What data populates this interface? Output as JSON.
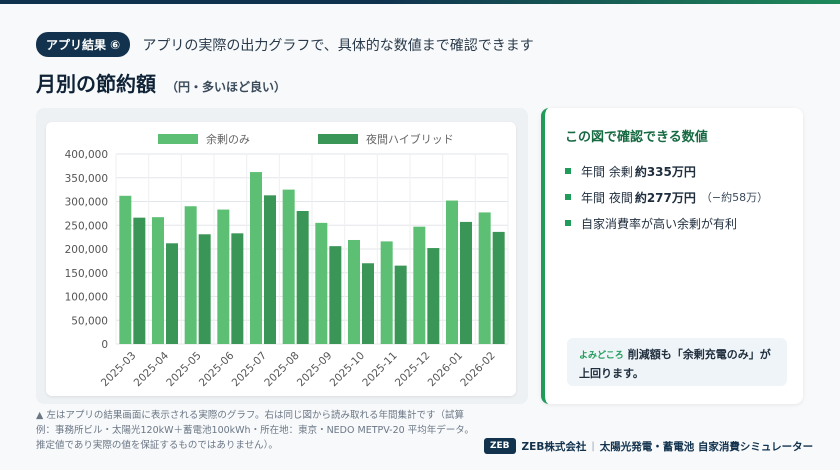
{
  "header": {
    "badge": "アプリ結果 ⑥",
    "subtitle": "アプリの実際の出力グラフで、具体的な数値まで確認できます",
    "title": "月別の節約額",
    "title_note": "（円・多いほど良い）"
  },
  "colors": {
    "series_1": "#5cbf74",
    "series_2": "#3a9656",
    "accent": "#1f9c59",
    "navy": "#12324d"
  },
  "chart_data": {
    "type": "bar",
    "categories": [
      "2025-03",
      "2025-04",
      "2025-05",
      "2025-06",
      "2025-07",
      "2025-08",
      "2025-09",
      "2025-10",
      "2025-11",
      "2025-12",
      "2026-01",
      "2026-02"
    ],
    "series": [
      {
        "name": "余剰のみ",
        "values": [
          312000,
          267000,
          290000,
          283000,
          362000,
          325000,
          255000,
          219000,
          216000,
          247000,
          302000,
          277000
        ]
      },
      {
        "name": "夜間ハイブリッド",
        "values": [
          266000,
          212000,
          231000,
          233000,
          313000,
          280000,
          206000,
          170000,
          165000,
          202000,
          257000,
          236000
        ]
      }
    ],
    "y_ticks": [
      "0",
      "50,000",
      "100,000",
      "150,000",
      "200,000",
      "250,000",
      "300,000",
      "350,000",
      "400,000"
    ],
    "ylim": [
      0,
      400000
    ],
    "grid": true,
    "legend": "top"
  },
  "info": {
    "title": "この図で確認できる数値",
    "items": [
      {
        "pre": "年間 余剰",
        "bold": "約335万円",
        "extra": ""
      },
      {
        "pre": "年間 夜間",
        "bold": "約277万円",
        "extra": "（−約58万）"
      },
      {
        "pre": "自家消費率が高い余剰が有利",
        "bold": "",
        "extra": ""
      }
    ],
    "note_tag": "よみどころ",
    "note_text": "削減額も「余剰充電のみ」が上回ります。"
  },
  "footnote": "▲ 左はアプリの結果画面に表示される実際のグラフ。右は同じ図から読み取れる年間集計です（試算例：事務所ビル・太陽光120kW＋蓄電池100kWh・所在地：東京・NEDO METPV-20 平均年データ。推定値であり実際の値を保証するものではありません）。",
  "footer": {
    "logo": "ZEB",
    "company": "ZEB株式会社",
    "separator": "|",
    "product": "太陽光発電・蓄電池 自家消費シミュレーター"
  }
}
